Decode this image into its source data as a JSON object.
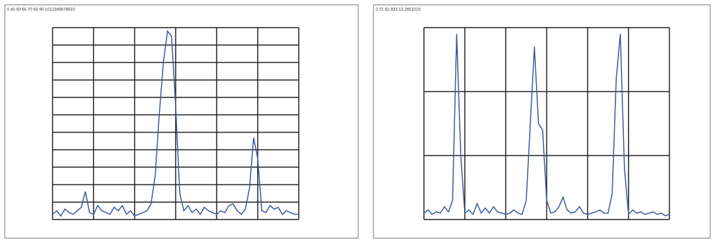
{
  "chart_data": [
    {
      "type": "line",
      "title": "0.40 50 60 70 80 90 1012345678910",
      "x": [
        0,
        0.1,
        0.2,
        0.3,
        0.4,
        0.5,
        0.6,
        0.7,
        0.8,
        0.9,
        1,
        1.1,
        1.2,
        1.3,
        1.4,
        1.5,
        1.6,
        1.7,
        1.8,
        1.9,
        2,
        2.1,
        2.2,
        2.3,
        2.4,
        2.5,
        2.6,
        2.7,
        2.8,
        2.9,
        3,
        3.1,
        3.2,
        3.3,
        3.4,
        3.5,
        3.6,
        3.7,
        3.8,
        3.9,
        4,
        4.1,
        4.2,
        4.3,
        4.4,
        4.5,
        4.6,
        4.7,
        4.8,
        4.9,
        5,
        5.1,
        5.2,
        5.3,
        5.4,
        5.5,
        5.6,
        5.7,
        5.8,
        5.9,
        6
      ],
      "series": [
        {
          "color": "#3a57a0",
          "values": [
            0.3,
            0.5,
            0.2,
            0.6,
            0.4,
            0.3,
            0.5,
            0.7,
            1.6,
            0.4,
            0.3,
            0.8,
            0.5,
            0.4,
            0.3,
            0.7,
            0.5,
            0.8,
            0.3,
            0.5,
            0.2,
            0.3,
            0.4,
            0.5,
            0.9,
            2.5,
            6.0,
            9.0,
            10.8,
            10.5,
            6.5,
            1.5,
            0.5,
            0.8,
            0.4,
            0.6,
            0.3,
            0.7,
            0.5,
            0.4,
            0.3,
            0.5,
            0.4,
            0.8,
            0.9,
            0.5,
            0.3,
            0.6,
            1.8,
            4.7,
            3.5,
            0.5,
            0.4,
            0.8,
            0.6,
            0.7,
            0.3,
            0.5,
            0.4,
            0.3,
            0.3
          ]
        }
      ],
      "xlim": [
        0,
        6
      ],
      "xticks": [
        0,
        1,
        2,
        3,
        4,
        5,
        6
      ],
      "ylim": [
        0,
        11
      ],
      "yticks": [
        0,
        1,
        2,
        3,
        4,
        5,
        6,
        7,
        8,
        9,
        10,
        11
      ],
      "grid": true
    },
    {
      "type": "line",
      "title": "2.72 82.933.13.2651015",
      "x": [
        0,
        0.1,
        0.2,
        0.3,
        0.4,
        0.5,
        0.6,
        0.7,
        0.8,
        0.9,
        1,
        1.1,
        1.2,
        1.3,
        1.4,
        1.5,
        1.6,
        1.7,
        1.8,
        1.9,
        2,
        2.1,
        2.2,
        2.3,
        2.4,
        2.5,
        2.6,
        2.7,
        2.8,
        2.9,
        3,
        3.1,
        3.2,
        3.3,
        3.4,
        3.5,
        3.6,
        3.7,
        3.8,
        3.9,
        4,
        4.1,
        4.2,
        4.3,
        4.4,
        4.5,
        4.6,
        4.7,
        4.8,
        4.9,
        5,
        5.1,
        5.2,
        5.3,
        5.4,
        5.5,
        5.6,
        5.7,
        5.8,
        5.9,
        6
      ],
      "series": [
        {
          "color": "#3a57a0",
          "values": [
            0.1,
            0.15,
            0.08,
            0.12,
            0.1,
            0.2,
            0.12,
            0.3,
            2.9,
            1.0,
            0.1,
            0.15,
            0.08,
            0.25,
            0.1,
            0.18,
            0.1,
            0.2,
            0.12,
            0.1,
            0.08,
            0.1,
            0.15,
            0.1,
            0.08,
            0.3,
            1.5,
            2.7,
            1.5,
            1.4,
            0.3,
            0.1,
            0.12,
            0.2,
            0.35,
            0.15,
            0.1,
            0.12,
            0.2,
            0.1,
            0.08,
            0.1,
            0.12,
            0.15,
            0.1,
            0.1,
            0.4,
            2.2,
            2.9,
            0.8,
            0.08,
            0.15,
            0.1,
            0.12,
            0.08,
            0.1,
            0.12,
            0.08,
            0.1,
            0.06,
            0.08
          ]
        }
      ],
      "xlim": [
        0,
        6
      ],
      "xticks": [
        0,
        1,
        2,
        3,
        4,
        5,
        6
      ],
      "ylim": [
        0,
        3
      ],
      "yticks": [
        0,
        1,
        2,
        3
      ],
      "grid": true
    }
  ]
}
